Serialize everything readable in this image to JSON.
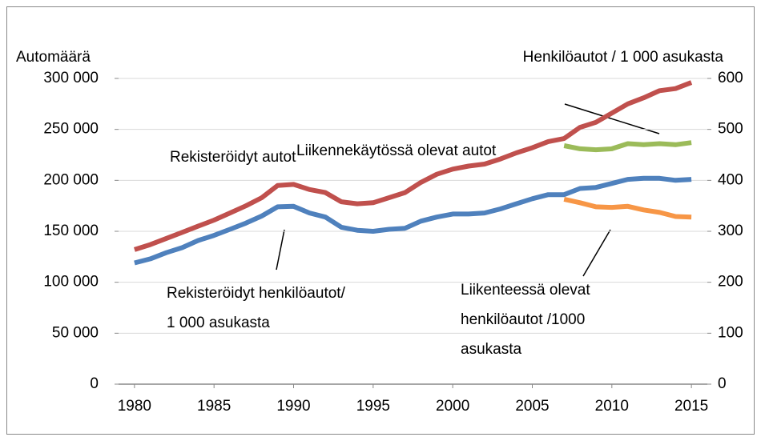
{
  "chart_data": {
    "type": "line",
    "ylabel": "Automäärä",
    "y2label": "Henkilöautot / 1 000 asukasta",
    "x": [
      1980,
      1981,
      1982,
      1983,
      1984,
      1985,
      1986,
      1987,
      1988,
      1989,
      1990,
      1991,
      1992,
      1993,
      1994,
      1995,
      1996,
      1997,
      1998,
      1999,
      2000,
      2001,
      2002,
      2003,
      2004,
      2005,
      2006,
      2007,
      2008,
      2009,
      2010,
      2011,
      2012,
      2013,
      2014,
      2015
    ],
    "xlim": [
      1979,
      2016
    ],
    "xticks": [
      1980,
      1985,
      1990,
      1995,
      2000,
      2005,
      2010,
      2015
    ],
    "ylim": [
      0,
      300000
    ],
    "yticks": [
      0,
      {
        "value": 50000,
        "label": "50 000"
      },
      {
        "value": 100000,
        "label": "100 000"
      },
      {
        "value": 150000,
        "label": "150 000"
      },
      {
        "value": 200000,
        "label": "200 000"
      },
      {
        "value": 250000,
        "label": "250 000"
      },
      {
        "value": 300000,
        "label": "300 000"
      }
    ],
    "y2lim": [
      0,
      600
    ],
    "y2ticks": [
      0,
      100,
      200,
      300,
      400,
      500,
      600
    ],
    "grid": true,
    "series": [
      {
        "name": "Rekisteröidyt autot",
        "color": "#c0504d",
        "values": [
          132000,
          137000,
          143000,
          149000,
          155000,
          161000,
          168000,
          175000,
          183000,
          195000,
          196000,
          191000,
          188000,
          179000,
          177000,
          178000,
          183000,
          188000,
          198000,
          206000,
          211000,
          214000,
          216000,
          221000,
          227000,
          232000,
          238000,
          241000,
          252000,
          257000,
          266000,
          275000,
          281000,
          288000,
          290000,
          296000
        ]
      },
      {
        "name": "Rekisteröidyt henkilöautot/\n1 000 asukasta",
        "color": "#4f81bd",
        "axis": "y2",
        "values": [
          238,
          246,
          258,
          268,
          282,
          292,
          304,
          316,
          330,
          348,
          349,
          336,
          328,
          308,
          302,
          300,
          304,
          306,
          320,
          328,
          334,
          334,
          336,
          344,
          354,
          364,
          372,
          372,
          384,
          386,
          394,
          402,
          404,
          404,
          400,
          402
        ]
      },
      {
        "name": "Liikennekäytössä olevat autot",
        "color": "#9bbb59",
        "values": [
          null,
          null,
          null,
          null,
          null,
          null,
          null,
          null,
          null,
          null,
          null,
          null,
          null,
          null,
          null,
          null,
          null,
          null,
          null,
          null,
          null,
          null,
          null,
          null,
          null,
          null,
          null,
          234000,
          231000,
          230000,
          231000,
          236000,
          235000,
          236000,
          235000,
          237000
        ]
      },
      {
        "name": "Liikenteessä olevat\nhenkilöautot /1000\nasukasta",
        "color": "#f79646",
        "axis": "y2",
        "values": [
          null,
          null,
          null,
          null,
          null,
          null,
          null,
          null,
          null,
          null,
          null,
          null,
          null,
          null,
          null,
          null,
          null,
          null,
          null,
          null,
          null,
          null,
          null,
          null,
          null,
          null,
          null,
          363,
          356,
          348,
          347,
          349,
          342,
          337,
          329,
          328
        ]
      }
    ]
  }
}
